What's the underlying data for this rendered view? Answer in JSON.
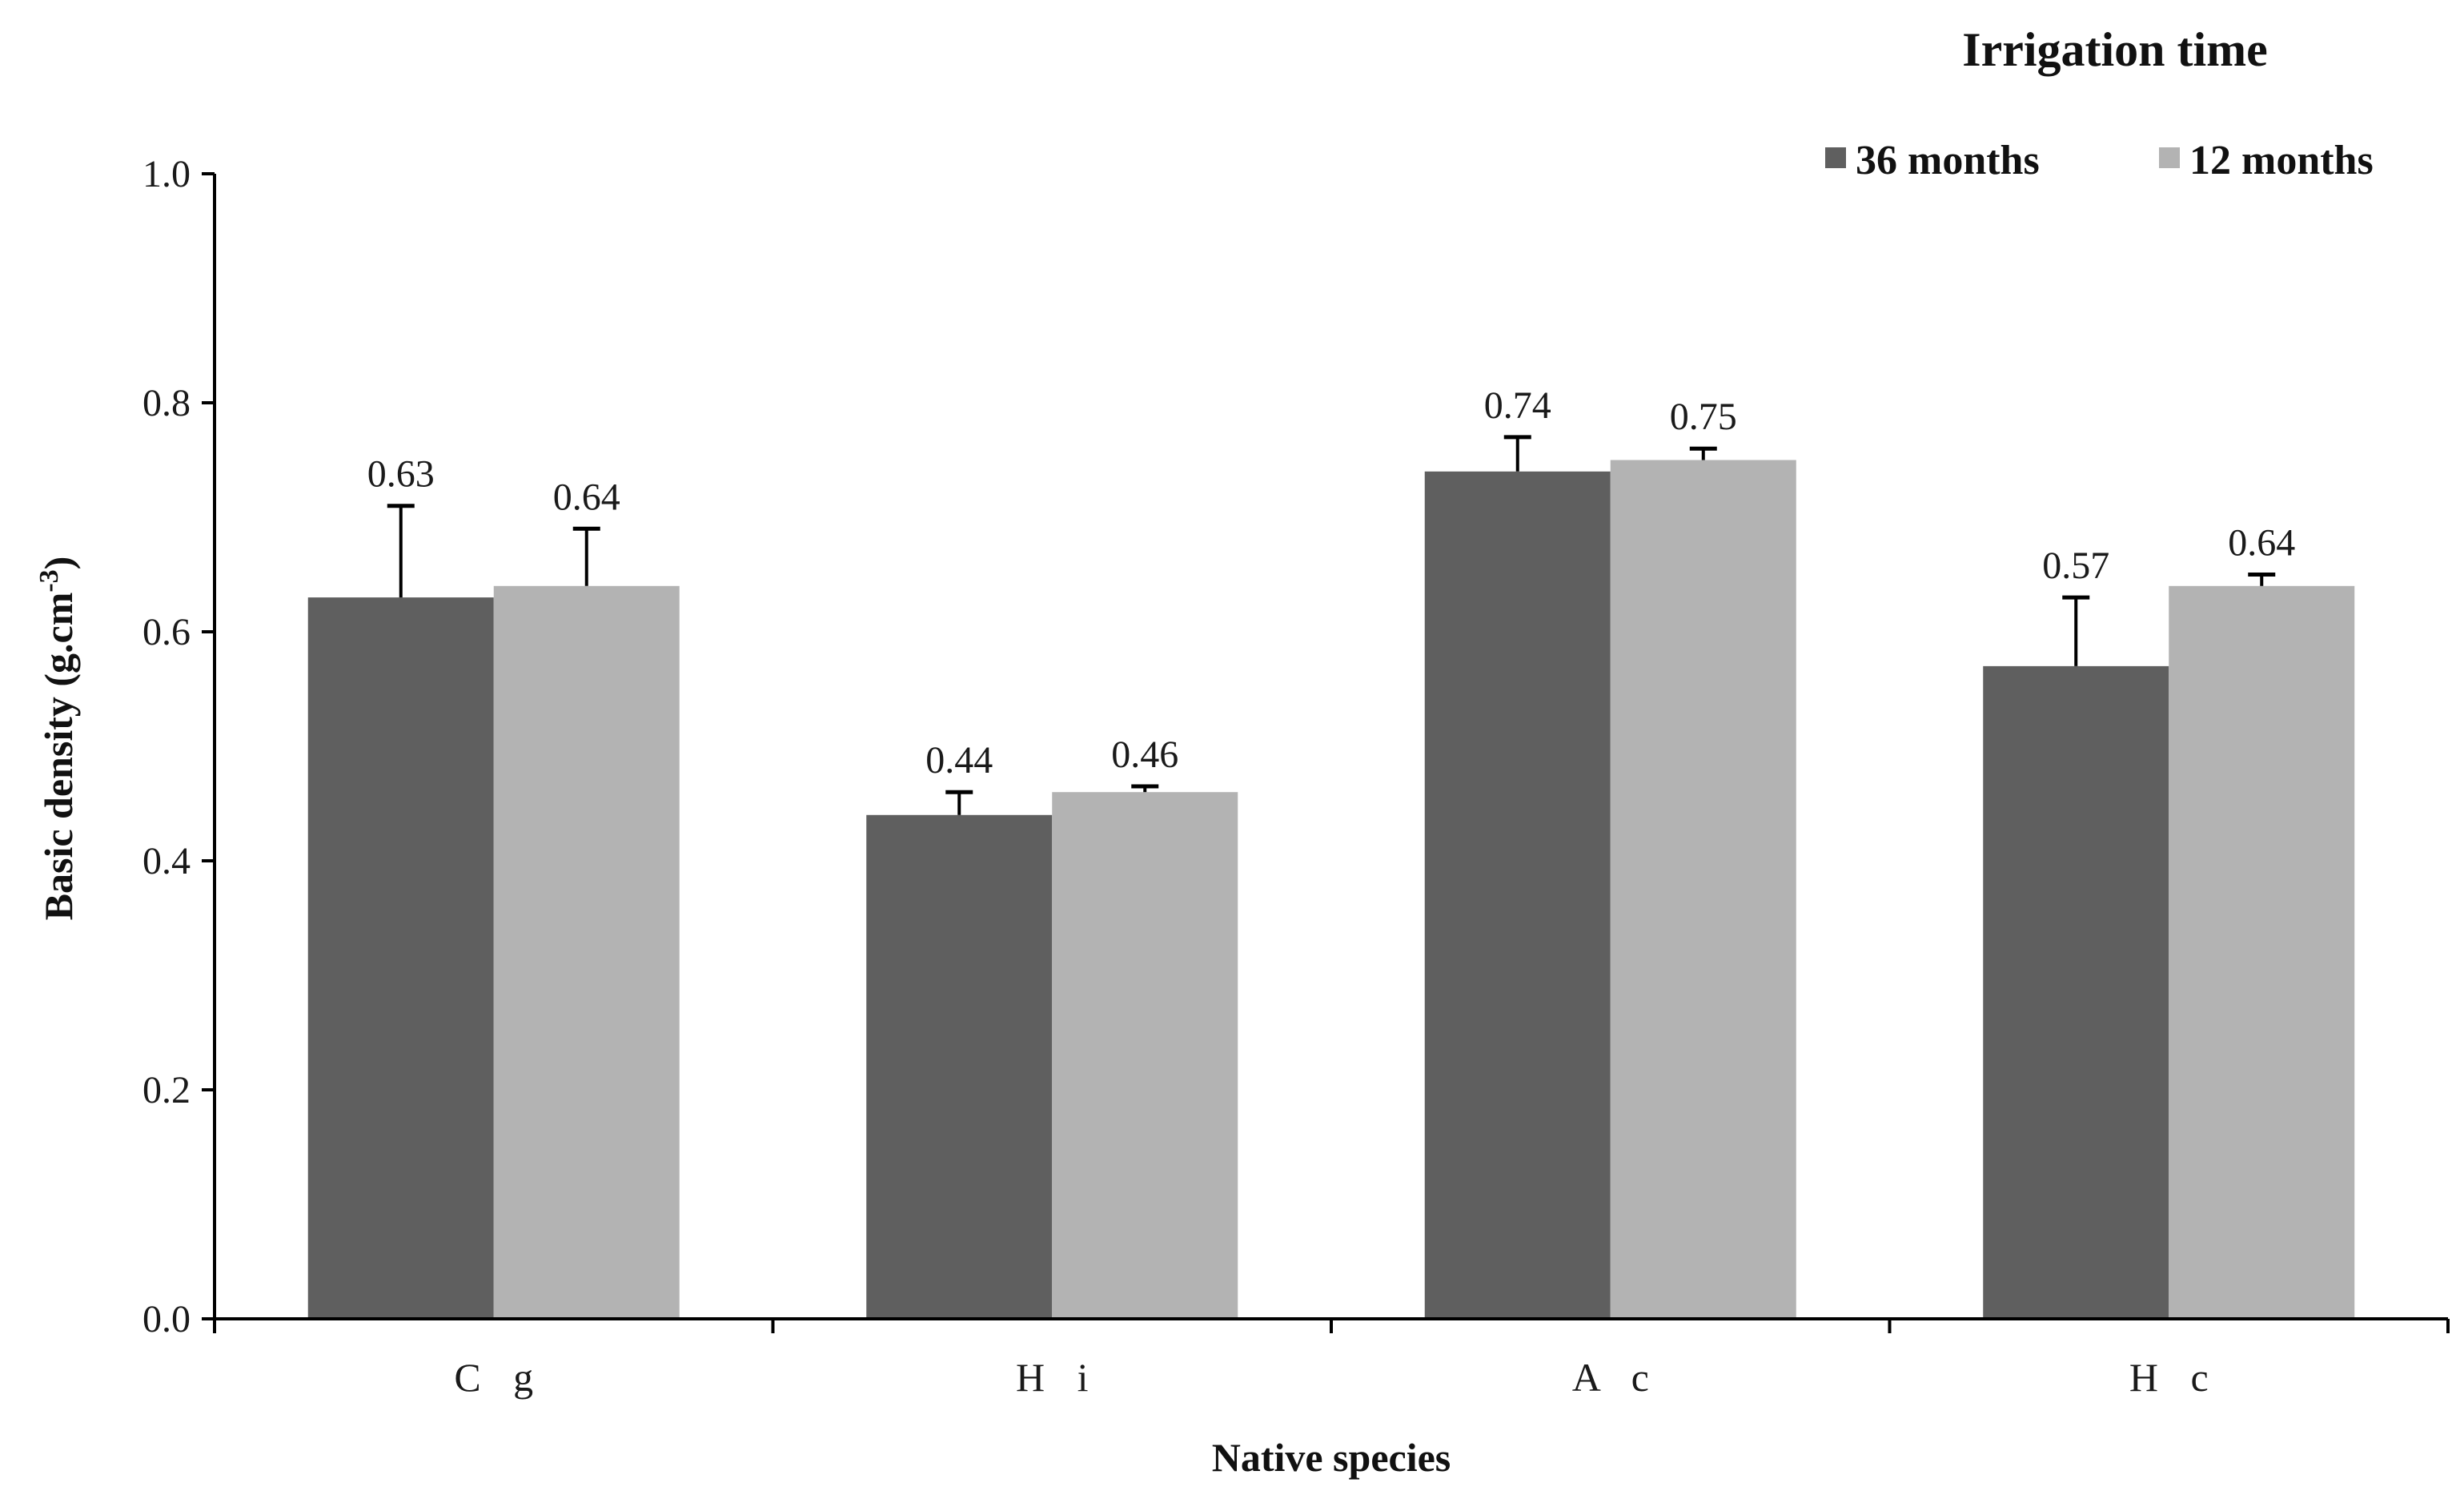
{
  "chart_data": {
    "type": "bar",
    "categories": [
      "C g",
      "H i",
      "A c",
      "H c"
    ],
    "series": [
      {
        "name": "36 months",
        "color": "#5f5f5f",
        "values": [
          0.63,
          0.44,
          0.74,
          0.57
        ],
        "error": [
          0.08,
          0.02,
          0.03,
          0.06
        ]
      },
      {
        "name": "12 months",
        "color": "#b3b3b3",
        "values": [
          0.64,
          0.46,
          0.75,
          0.64
        ],
        "error": [
          0.05,
          0.005,
          0.01,
          0.01
        ]
      }
    ],
    "data_labels": [
      [
        "0.63",
        "0.44",
        "0.74",
        "0.57"
      ],
      [
        "0.64",
        "0.46",
        "0.75",
        "0.64"
      ]
    ],
    "y_ticks": [
      "0.0",
      "0.2",
      "0.4",
      "0.6",
      "0.8",
      "1.0"
    ],
    "ylim": [
      0,
      1.0
    ],
    "xlabel": "Native species",
    "ylabel": "Basic density  (g.cm",
    "ylabel_superscript": "-3",
    "ylabel_close": ")",
    "legend_title": "Irrigation time",
    "legend_position": "top-right",
    "grid": false
  }
}
